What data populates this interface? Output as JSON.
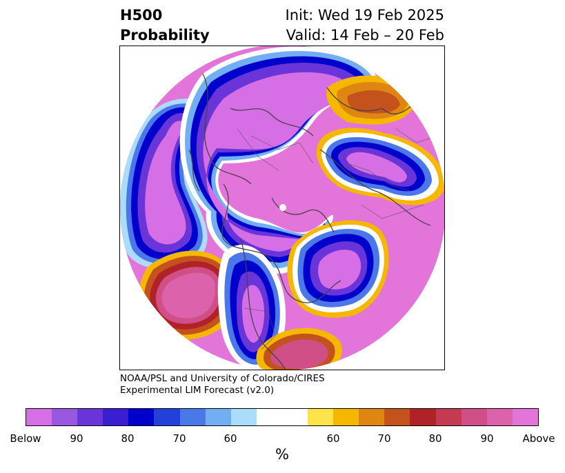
{
  "header": {
    "title_line1": "H500",
    "title_line2": "Probability",
    "init": "Init: Wed 19 Feb 2025",
    "valid": "Valid: 14 Feb – 20 Feb"
  },
  "credit": {
    "line1": "NOAA/PSL and University of Colorado/CIRES",
    "line2": "Experimental LIM Forecast (v2.0)"
  },
  "colorbar": {
    "colors": [
      "#d66fe6",
      "#9a57e0",
      "#6a35d8",
      "#3a1ed2",
      "#0000cc",
      "#2340d8",
      "#4a78e8",
      "#72aff2",
      "#acdcfb",
      "#ffffff",
      "#ffe34a",
      "#f5b700",
      "#df8512",
      "#c4521c",
      "#b02228",
      "#c43a50",
      "#cf4f86",
      "#dc62ab",
      "#e274da"
    ],
    "tick_labels": [
      "Below",
      "90",
      "80",
      "70",
      "60",
      "60",
      "70",
      "80",
      "90",
      "Above"
    ],
    "unit": "%"
  },
  "map": {
    "projection": "North Polar Stereographic",
    "above_color": "#e274da",
    "below_color": "#d66fe6"
  }
}
